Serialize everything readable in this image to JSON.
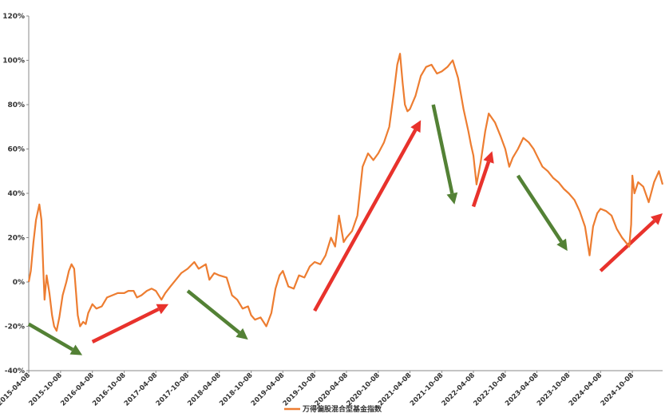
{
  "chart_data": {
    "type": "line",
    "title": "",
    "xlabel": "",
    "ylabel": "",
    "ylim": [
      -40,
      120
    ],
    "y_ticks": [
      -40,
      -20,
      0,
      20,
      40,
      60,
      80,
      100,
      120
    ],
    "y_tick_labels": [
      "-40%",
      "-20%",
      "0%",
      "20%",
      "40%",
      "60%",
      "80%",
      "100%",
      "120%"
    ],
    "x_range": [
      "2015-04-08",
      "2025-03-31"
    ],
    "x_tick_labels": [
      "2015-04-08",
      "2015-10-08",
      "2016-04-08",
      "2016-10-08",
      "2017-04-08",
      "2017-10-08",
      "2018-04-08",
      "2018-10-08",
      "2019-04-08",
      "2019-10-08",
      "2020-04-08",
      "2020-10-08",
      "2021-04-08",
      "2021-10-08",
      "2022-04-08",
      "2022-10-08",
      "2023-04-08",
      "2023-10-08",
      "2024-04-08",
      "2024-10-08"
    ],
    "grid": false,
    "legend_position": "bottom",
    "line_color": "#ED7D31",
    "series": [
      {
        "name": "万得偏股混合型基金指数",
        "points": [
          [
            "2015-04-08",
            0
          ],
          [
            "2015-04-20",
            5
          ],
          [
            "2015-05-05",
            18
          ],
          [
            "2015-05-20",
            28
          ],
          [
            "2015-06-08",
            35
          ],
          [
            "2015-06-20",
            28
          ],
          [
            "2015-07-01",
            5
          ],
          [
            "2015-07-08",
            -8
          ],
          [
            "2015-07-20",
            3
          ],
          [
            "2015-08-05",
            -5
          ],
          [
            "2015-08-20",
            -15
          ],
          [
            "2015-09-01",
            -20
          ],
          [
            "2015-09-15",
            -22
          ],
          [
            "2015-10-01",
            -16
          ],
          [
            "2015-10-20",
            -6
          ],
          [
            "2015-11-10",
            0
          ],
          [
            "2015-11-25",
            5
          ],
          [
            "2015-12-10",
            8
          ],
          [
            "2015-12-25",
            6
          ],
          [
            "2016-01-05",
            -5
          ],
          [
            "2016-01-15",
            -15
          ],
          [
            "2016-01-28",
            -20
          ],
          [
            "2016-02-15",
            -18
          ],
          [
            "2016-03-01",
            -19
          ],
          [
            "2016-03-15",
            -14
          ],
          [
            "2016-04-08",
            -10
          ],
          [
            "2016-05-01",
            -12
          ],
          [
            "2016-06-01",
            -11
          ],
          [
            "2016-07-01",
            -7
          ],
          [
            "2016-08-01",
            -6
          ],
          [
            "2016-09-01",
            -5
          ],
          [
            "2016-10-08",
            -5
          ],
          [
            "2016-11-01",
            -4
          ],
          [
            "2016-12-01",
            -4
          ],
          [
            "2016-12-20",
            -7
          ],
          [
            "2017-01-15",
            -6
          ],
          [
            "2017-02-15",
            -4
          ],
          [
            "2017-03-15",
            -3
          ],
          [
            "2017-04-08",
            -4
          ],
          [
            "2017-05-10",
            -8
          ],
          [
            "2017-06-01",
            -5
          ],
          [
            "2017-07-01",
            -2
          ],
          [
            "2017-08-01",
            1
          ],
          [
            "2017-09-01",
            4
          ],
          [
            "2017-10-08",
            6
          ],
          [
            "2017-11-15",
            9
          ],
          [
            "2017-12-10",
            6
          ],
          [
            "2018-01-20",
            8
          ],
          [
            "2018-02-10",
            1
          ],
          [
            "2018-03-10",
            4
          ],
          [
            "2018-04-08",
            3
          ],
          [
            "2018-05-20",
            2
          ],
          [
            "2018-06-20",
            -6
          ],
          [
            "2018-07-20",
            -8
          ],
          [
            "2018-08-20",
            -12
          ],
          [
            "2018-09-20",
            -11
          ],
          [
            "2018-10-08",
            -15
          ],
          [
            "2018-10-30",
            -17
          ],
          [
            "2018-12-01",
            -16
          ],
          [
            "2019-01-03",
            -20
          ],
          [
            "2019-02-01",
            -14
          ],
          [
            "2019-02-25",
            -3
          ],
          [
            "2019-03-20",
            3
          ],
          [
            "2019-04-08",
            5
          ],
          [
            "2019-05-10",
            -2
          ],
          [
            "2019-06-10",
            -3
          ],
          [
            "2019-07-10",
            3
          ],
          [
            "2019-08-10",
            2
          ],
          [
            "2019-09-10",
            7
          ],
          [
            "2019-10-08",
            9
          ],
          [
            "2019-11-10",
            8
          ],
          [
            "2019-12-10",
            12
          ],
          [
            "2020-01-10",
            20
          ],
          [
            "2020-02-03",
            16
          ],
          [
            "2020-02-25",
            30
          ],
          [
            "2020-03-23",
            18
          ],
          [
            "2020-04-08",
            20
          ],
          [
            "2020-05-10",
            23
          ],
          [
            "2020-06-10",
            30
          ],
          [
            "2020-07-10",
            52
          ],
          [
            "2020-08-10",
            58
          ],
          [
            "2020-09-10",
            55
          ],
          [
            "2020-10-08",
            58
          ],
          [
            "2020-11-10",
            63
          ],
          [
            "2020-12-10",
            70
          ],
          [
            "2021-01-05",
            85
          ],
          [
            "2021-01-25",
            98
          ],
          [
            "2021-02-10",
            103
          ],
          [
            "2021-02-25",
            90
          ],
          [
            "2021-03-10",
            80
          ],
          [
            "2021-03-25",
            77
          ],
          [
            "2021-04-08",
            78
          ],
          [
            "2021-05-10",
            84
          ],
          [
            "2021-06-10",
            93
          ],
          [
            "2021-07-10",
            97
          ],
          [
            "2021-08-10",
            98
          ],
          [
            "2021-09-10",
            94
          ],
          [
            "2021-10-08",
            95
          ],
          [
            "2021-11-10",
            97
          ],
          [
            "2021-12-10",
            100
          ],
          [
            "2022-01-10",
            92
          ],
          [
            "2022-02-10",
            78
          ],
          [
            "2022-03-10",
            68
          ],
          [
            "2022-03-25",
            62
          ],
          [
            "2022-04-08",
            57
          ],
          [
            "2022-04-26",
            44
          ],
          [
            "2022-05-20",
            54
          ],
          [
            "2022-06-15",
            68
          ],
          [
            "2022-07-05",
            76
          ],
          [
            "2022-08-10",
            72
          ],
          [
            "2022-09-10",
            66
          ],
          [
            "2022-10-08",
            60
          ],
          [
            "2022-10-31",
            52
          ],
          [
            "2022-11-20",
            56
          ],
          [
            "2022-12-20",
            60
          ],
          [
            "2023-01-20",
            65
          ],
          [
            "2023-02-20",
            63
          ],
          [
            "2023-03-20",
            60
          ],
          [
            "2023-04-08",
            57
          ],
          [
            "2023-05-10",
            52
          ],
          [
            "2023-06-10",
            50
          ],
          [
            "2023-07-10",
            47
          ],
          [
            "2023-08-10",
            45
          ],
          [
            "2023-09-10",
            42
          ],
          [
            "2023-10-08",
            40
          ],
          [
            "2023-11-10",
            37
          ],
          [
            "2023-12-10",
            32
          ],
          [
            "2024-01-10",
            25
          ],
          [
            "2024-02-05",
            12
          ],
          [
            "2024-02-25",
            25
          ],
          [
            "2024-03-20",
            31
          ],
          [
            "2024-04-08",
            33
          ],
          [
            "2024-05-10",
            32
          ],
          [
            "2024-06-10",
            30
          ],
          [
            "2024-07-10",
            24
          ],
          [
            "2024-08-10",
            20
          ],
          [
            "2024-09-20",
            16
          ],
          [
            "2024-10-01",
            26
          ],
          [
            "2024-10-08",
            48
          ],
          [
            "2024-10-20",
            40
          ],
          [
            "2024-11-10",
            45
          ],
          [
            "2024-12-10",
            43
          ],
          [
            "2025-01-10",
            36
          ],
          [
            "2025-02-10",
            45
          ],
          [
            "2025-03-10",
            50
          ],
          [
            "2025-03-31",
            44
          ]
        ]
      }
    ],
    "annotations": [
      {
        "type": "arrow",
        "trend": "down",
        "color": "#538135",
        "from": [
          "2015-04-08",
          -19
        ],
        "to": [
          "2016-02-10",
          -33
        ]
      },
      {
        "type": "arrow",
        "trend": "up",
        "color": "#E8322C",
        "from": [
          "2016-04-08",
          -27
        ],
        "to": [
          "2017-06-20",
          -10
        ]
      },
      {
        "type": "arrow",
        "trend": "down",
        "color": "#538135",
        "from": [
          "2017-10-08",
          -4
        ],
        "to": [
          "2018-09-20",
          -26
        ]
      },
      {
        "type": "arrow",
        "trend": "up",
        "color": "#E8322C",
        "from": [
          "2019-10-08",
          -13
        ],
        "to": [
          "2021-06-10",
          73
        ]
      },
      {
        "type": "arrow",
        "trend": "down",
        "color": "#538135",
        "from": [
          "2021-08-20",
          80
        ],
        "to": [
          "2021-12-20",
          35
        ]
      },
      {
        "type": "arrow",
        "trend": "up",
        "color": "#E8322C",
        "from": [
          "2022-04-08",
          34
        ],
        "to": [
          "2022-07-25",
          59
        ]
      },
      {
        "type": "arrow",
        "trend": "down",
        "color": "#538135",
        "from": [
          "2022-12-20",
          48
        ],
        "to": [
          "2023-10-01",
          14
        ]
      },
      {
        "type": "arrow",
        "trend": "up",
        "color": "#E8322C",
        "from": [
          "2024-04-08",
          5
        ],
        "to": [
          "2025-03-31",
          31
        ]
      }
    ]
  }
}
